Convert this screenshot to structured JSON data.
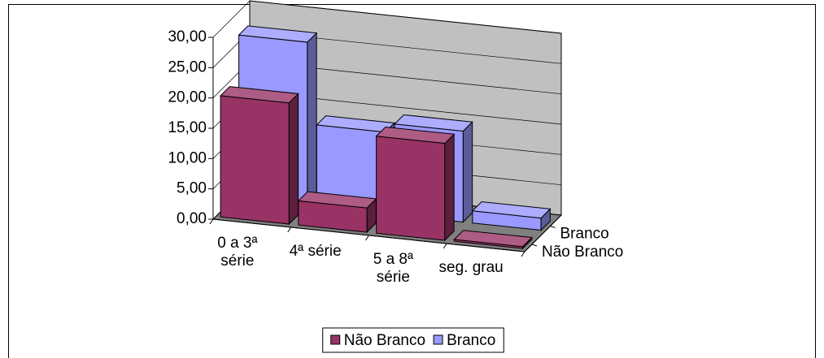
{
  "chart_data": {
    "type": "bar3d",
    "categories": [
      "0 a 3ª série",
      "4ª série",
      "5 a 8ª série",
      "seg. grau"
    ],
    "series": [
      {
        "name": "Não Branco",
        "color": "#993366",
        "values": [
          20,
          4,
          16,
          0.3
        ]
      },
      {
        "name": "Branco",
        "color": "#9999ff",
        "values": [
          27,
          13.5,
          15,
          2
        ]
      }
    ],
    "ylim": [
      0,
      30
    ],
    "yticks": [
      {
        "value": 0,
        "label": "0,00"
      },
      {
        "value": 5,
        "label": "5,00"
      },
      {
        "value": 10,
        "label": "10,00"
      },
      {
        "value": 15,
        "label": "15,00"
      },
      {
        "value": 20,
        "label": "20,00"
      },
      {
        "value": 25,
        "label": "25,00"
      },
      {
        "value": 30,
        "label": "30,00"
      }
    ],
    "grid": true,
    "legend": "bottom"
  }
}
